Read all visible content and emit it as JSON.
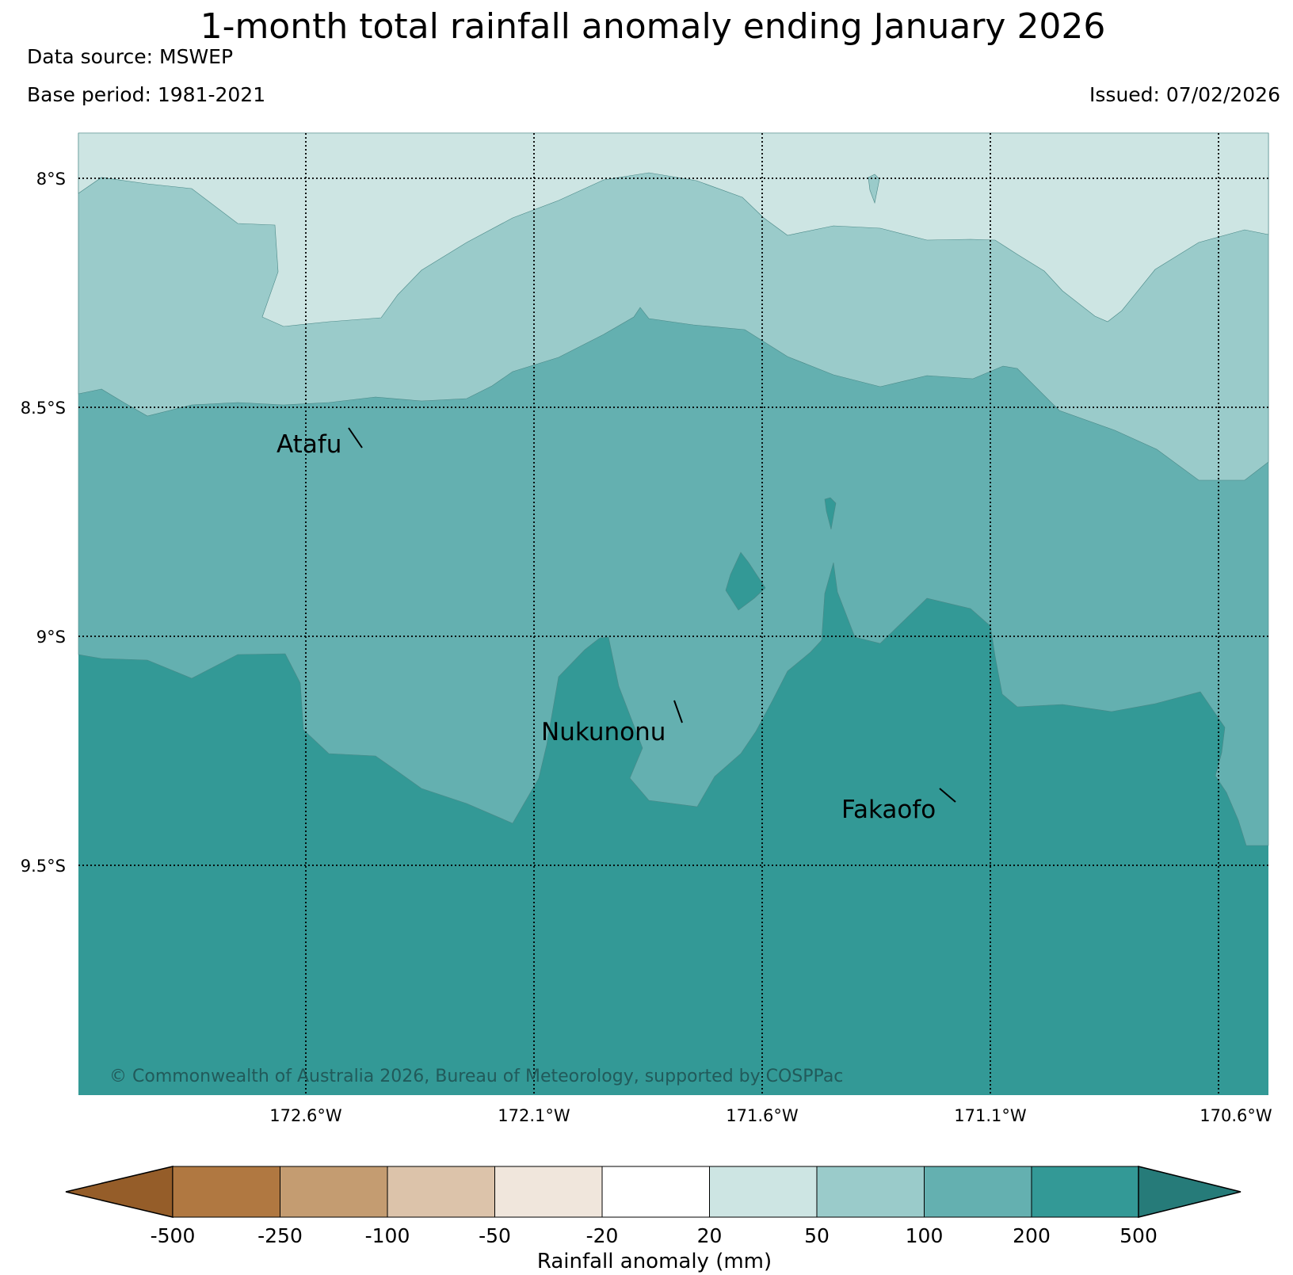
{
  "header": {
    "title": "1-month total rainfall anomaly ending January 2026",
    "data_source": "Data source: MSWEP",
    "base_period": "Base period: 1981-2021",
    "issued": "Issued: 07/02/2026"
  },
  "map": {
    "lat_labels": [
      "8°S",
      "8.5°S",
      "9°S",
      "9.5°S"
    ],
    "lon_labels": [
      "172.6°W",
      "172.1°W",
      "171.6°W",
      "171.1°W",
      "170.6°W"
    ],
    "places": [
      {
        "name": "Atafu"
      },
      {
        "name": "Nukunonu"
      },
      {
        "name": "Fakaofo"
      }
    ],
    "credit": "© Commonwealth of Australia 2026, Bureau of Meteorology, supported by COSPPac",
    "fill_colors": {
      "20_50": "#cde5e3",
      "50_100": "#9acbca",
      "100_200": "#64b0b0",
      "200_500": "#339996"
    }
  },
  "legend": {
    "label": "Rainfall anomaly (mm)",
    "tick_labels": [
      "-500",
      "-250",
      "-100",
      "-50",
      "-20",
      "20",
      "50",
      "100",
      "200",
      "500"
    ],
    "colors": [
      "#955d29",
      "#b07841",
      "#c49c71",
      "#dcc3aa",
      "#f0e6dc",
      "#ffffff",
      "#cde5e3",
      "#9acbca",
      "#64b0b0",
      "#339996",
      "#267b79"
    ]
  }
}
